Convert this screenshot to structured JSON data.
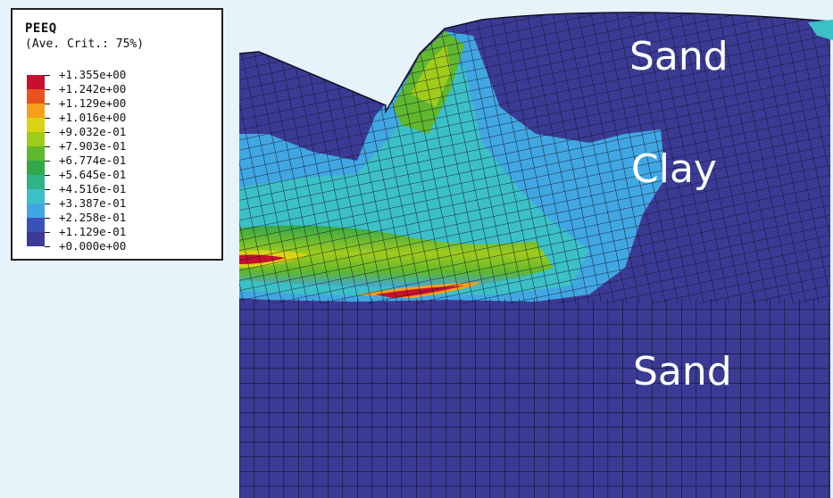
{
  "legend": {
    "title": "PEEQ",
    "subtitle": "(Ave. Crit.: 75%)",
    "ticks": [
      "+1.355e+00",
      "+1.242e+00",
      "+1.129e+00",
      "+1.016e+00",
      "+9.032e-01",
      "+7.903e-01",
      "+6.774e-01",
      "+5.645e-01",
      "+4.516e-01",
      "+3.387e-01",
      "+2.258e-01",
      "+1.129e-01",
      "+0.000e+00"
    ],
    "colors": [
      "#c8102e",
      "#e8531f",
      "#f59f1a",
      "#d9d413",
      "#9fcc1b",
      "#5fb82d",
      "#33a84a",
      "#2fb486",
      "#3cc0c8",
      "#41a7e3",
      "#3a52b8",
      "#3b3b96"
    ]
  },
  "regions": {
    "sand_top": "Sand",
    "clay": "Clay",
    "sand_bottom": "Sand"
  },
  "colors": {
    "background": "#e6f3fa",
    "sand": "#3b3b96",
    "mesh_line": "#101025",
    "low": "#41a7e3",
    "mid": "#33a84a",
    "high": "#d9d413",
    "peak": "#c8102e"
  }
}
